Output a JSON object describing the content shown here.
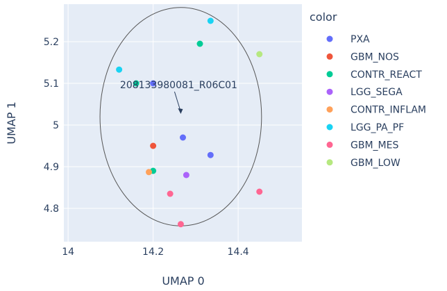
{
  "chart_data": {
    "type": "scatter",
    "title": "",
    "xlabel": "UMAP 0",
    "ylabel": "UMAP 1",
    "xlim": [
      13.99,
      14.55
    ],
    "ylim": [
      4.72,
      5.29
    ],
    "x_ticks": [
      14,
      14.2,
      14.4
    ],
    "x_tick_labels": [
      "14",
      "14.2",
      "14.4"
    ],
    "y_ticks": [
      4.8,
      4.9,
      5,
      5.1,
      5.2
    ],
    "y_tick_labels": [
      "4.8",
      "4.9",
      "5",
      "5.1",
      "5.2"
    ],
    "grid": true,
    "legend_title": "color",
    "legend_position": "right",
    "series": [
      {
        "name": "PXA",
        "color": "#636efa",
        "points": [
          [
            14.2,
            5.1
          ],
          [
            14.27,
            4.97
          ],
          [
            14.335,
            4.928
          ]
        ]
      },
      {
        "name": "GBM_NOS",
        "color": "#ef553b",
        "points": [
          [
            14.2,
            4.95
          ]
        ]
      },
      {
        "name": "CONTR_REACT",
        "color": "#00cc96",
        "points": [
          [
            14.31,
            5.195
          ],
          [
            14.16,
            5.1
          ],
          [
            14.2,
            4.89
          ]
        ]
      },
      {
        "name": "LGG_SEGA",
        "color": "#ab63fa",
        "points": [
          [
            14.278,
            4.88
          ]
        ]
      },
      {
        "name": "CONTR_INFLAM",
        "color": "#ffa15a",
        "points": [
          [
            14.19,
            4.887
          ]
        ]
      },
      {
        "name": "LGG_PA_PF",
        "color": "#19d3f3",
        "points": [
          [
            14.335,
            5.25
          ],
          [
            14.12,
            5.133
          ]
        ]
      },
      {
        "name": "GBM_MES",
        "color": "#ff6692",
        "points": [
          [
            14.24,
            4.835
          ],
          [
            14.265,
            4.762
          ],
          [
            14.45,
            4.84
          ]
        ]
      },
      {
        "name": "GBM_LOW",
        "color": "#b6e880",
        "points": [
          [
            14.45,
            5.17
          ]
        ]
      }
    ],
    "annotation": {
      "text": "208133980081_R06C01",
      "x": 14.265,
      "y": 5.025
    },
    "circle": {
      "x0": 14.075,
      "x1": 14.455,
      "y0": 4.758,
      "y1": 5.282
    }
  }
}
